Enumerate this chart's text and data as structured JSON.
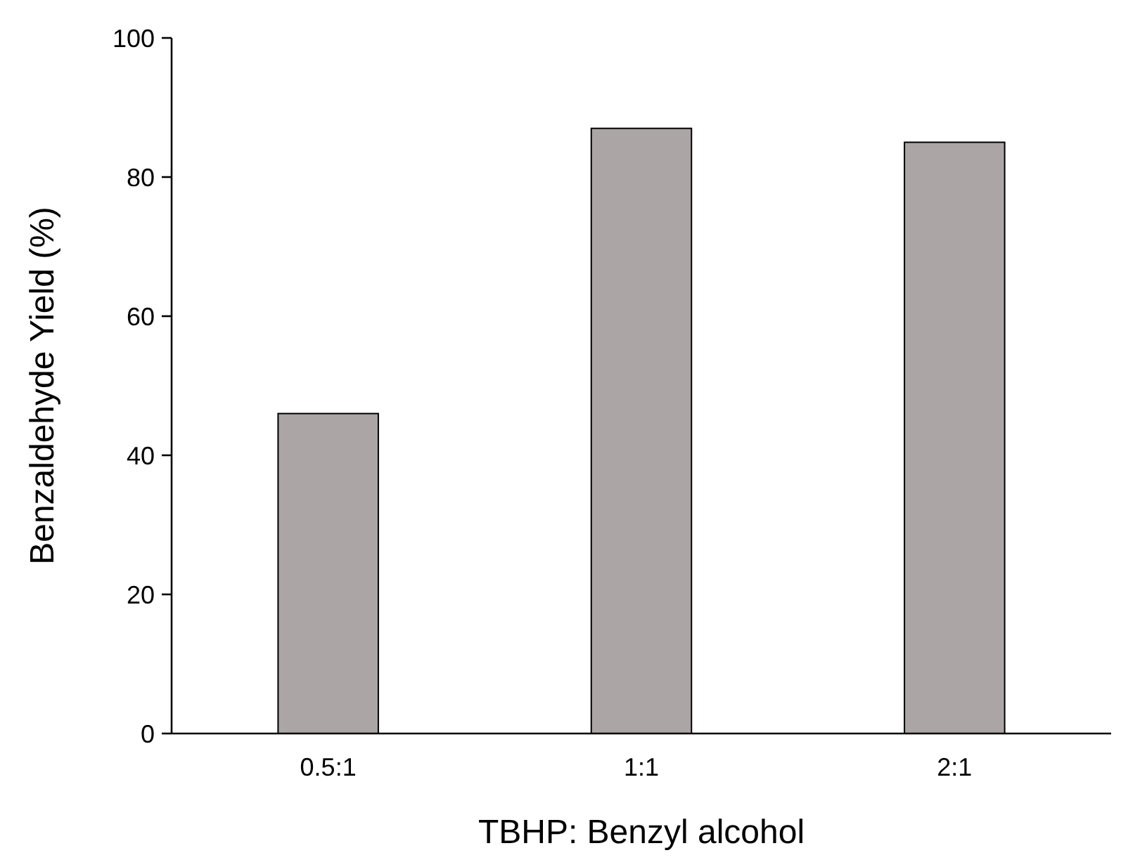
{
  "chart_data": {
    "type": "bar",
    "xlabel": "TBHP: Benzyl alcohol",
    "ylabel": "Benzaldehyde Yield (%)",
    "categories": [
      "0.5:1",
      "1:1",
      "2:1"
    ],
    "values": [
      46,
      87,
      85
    ],
    "color": "#aba6a5",
    "ylim": [
      0,
      100
    ],
    "yticks": [
      0,
      20,
      40,
      60,
      80,
      100
    ],
    "grid": false
  }
}
